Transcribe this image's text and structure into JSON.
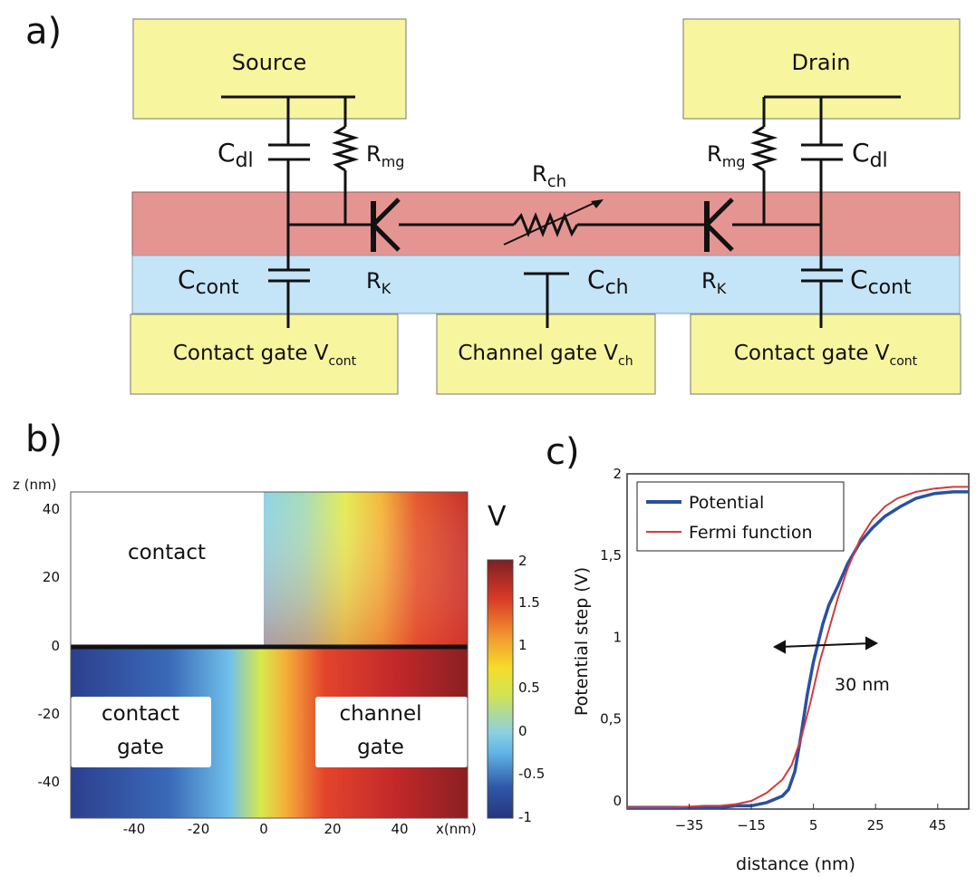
{
  "panel_a": {
    "label": "a)",
    "boxes": {
      "source": "Source",
      "drain": "Drain",
      "contact_gate_left": "Contact gate V",
      "contact_gate_left_sub": "cont",
      "channel_gate": "Channel gate V",
      "channel_gate_sub": "ch",
      "contact_gate_right": "Contact gate V",
      "contact_gate_right_sub": "cont"
    },
    "components": {
      "cdl_left": {
        "main": "C",
        "sub": "dl"
      },
      "rmg_left": {
        "main": "R",
        "sub": "mg"
      },
      "rch": {
        "main": "R",
        "sub": "ch"
      },
      "rmg_right": {
        "main": "R",
        "sub": "mg"
      },
      "cdl_right": {
        "main": "C",
        "sub": "dl"
      },
      "ccont_left": {
        "main": "C",
        "sub": "cont"
      },
      "rk_left": {
        "main": "R",
        "sub": "K"
      },
      "cch": {
        "main": "C",
        "sub": "ch"
      },
      "rk_right": {
        "main": "R",
        "sub": "K"
      },
      "ccont_right": {
        "main": "C",
        "sub": "cont"
      }
    },
    "colors": {
      "box": "#f7f59e",
      "red_layer": "#e59591",
      "blue_layer": "#c4e4f7"
    }
  },
  "panel_b": {
    "label": "b)",
    "yaxis_label": "z (nm)",
    "xaxis_label": "x(nm)",
    "x_ticks": [
      "-40",
      "-20",
      "0",
      "20",
      "40"
    ],
    "y_ticks": [
      "40",
      "20",
      "0",
      "-20",
      "-40"
    ],
    "regions": {
      "contact": "contact",
      "contact_gate_1": "contact",
      "contact_gate_2": "gate",
      "channel_gate_1": "channel",
      "channel_gate_2": "gate"
    },
    "colorbar": {
      "title": "V",
      "ticks": [
        "2",
        "1.5",
        "1",
        "0.5",
        "0",
        "-0.5",
        "-1"
      ]
    }
  },
  "panel_c": {
    "label": "c)",
    "chart_data": {
      "type": "line",
      "xlabel": "distance (nm)",
      "ylabel": "Potential step (V)",
      "xlim": [
        -55,
        55
      ],
      "ylim": [
        -0.05,
        2.0
      ],
      "x_tick_labels": [
        "−35",
        "−15",
        "5",
        "25",
        "45"
      ],
      "y_tick_labels": [
        "0",
        "0,5",
        "1",
        "1,5",
        "2"
      ],
      "legend_placement": "top-left",
      "annotation": "30 nm",
      "series": [
        {
          "name": "Potential",
          "color": "#2a50a3",
          "x": [
            -55,
            -40,
            -30,
            -25,
            -20,
            -15,
            -10,
            -5,
            -3,
            -1,
            1,
            3,
            5,
            8,
            10,
            13,
            16,
            20,
            24,
            28,
            33,
            38,
            44,
            50,
            55
          ],
          "y": [
            -0.04,
            -0.04,
            -0.04,
            -0.04,
            -0.03,
            -0.03,
            -0.01,
            0.03,
            0.07,
            0.18,
            0.4,
            0.65,
            0.85,
            1.08,
            1.2,
            1.32,
            1.45,
            1.58,
            1.67,
            1.74,
            1.8,
            1.85,
            1.88,
            1.89,
            1.89
          ]
        },
        {
          "name": "Fermi function",
          "color": "#d23b3b",
          "x": [
            -55,
            -40,
            -30,
            -25,
            -20,
            -15,
            -10,
            -5,
            -2,
            1,
            4,
            7,
            10,
            13,
            16,
            20,
            24,
            28,
            32,
            38,
            44,
            50,
            55
          ],
          "y": [
            -0.04,
            -0.04,
            -0.03,
            -0.03,
            -0.02,
            0.0,
            0.05,
            0.13,
            0.22,
            0.38,
            0.6,
            0.85,
            1.05,
            1.25,
            1.42,
            1.6,
            1.72,
            1.8,
            1.85,
            1.89,
            1.91,
            1.92,
            1.92
          ]
        }
      ]
    }
  }
}
